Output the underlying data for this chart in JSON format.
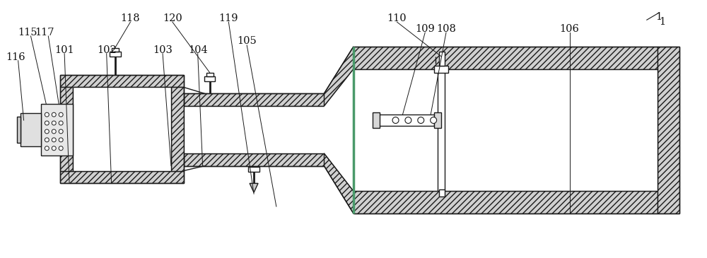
{
  "bg_color": "#ffffff",
  "line_color": "#1a1a1a",
  "lw": 1.0,
  "fig_width": 10.0,
  "fig_height": 3.65,
  "labels": [
    [
      "1",
      940,
      335
    ],
    [
      "101",
      88,
      295
    ],
    [
      "102",
      148,
      295
    ],
    [
      "103",
      228,
      295
    ],
    [
      "104",
      278,
      295
    ],
    [
      "105",
      348,
      308
    ],
    [
      "106",
      808,
      325
    ],
    [
      "108",
      632,
      325
    ],
    [
      "109",
      602,
      325
    ],
    [
      "110",
      562,
      340
    ],
    [
      "115",
      35,
      320
    ],
    [
      "116",
      18,
      285
    ],
    [
      "117",
      60,
      320
    ],
    [
      "118",
      182,
      340
    ],
    [
      "119",
      322,
      340
    ],
    [
      "120",
      242,
      340
    ]
  ]
}
